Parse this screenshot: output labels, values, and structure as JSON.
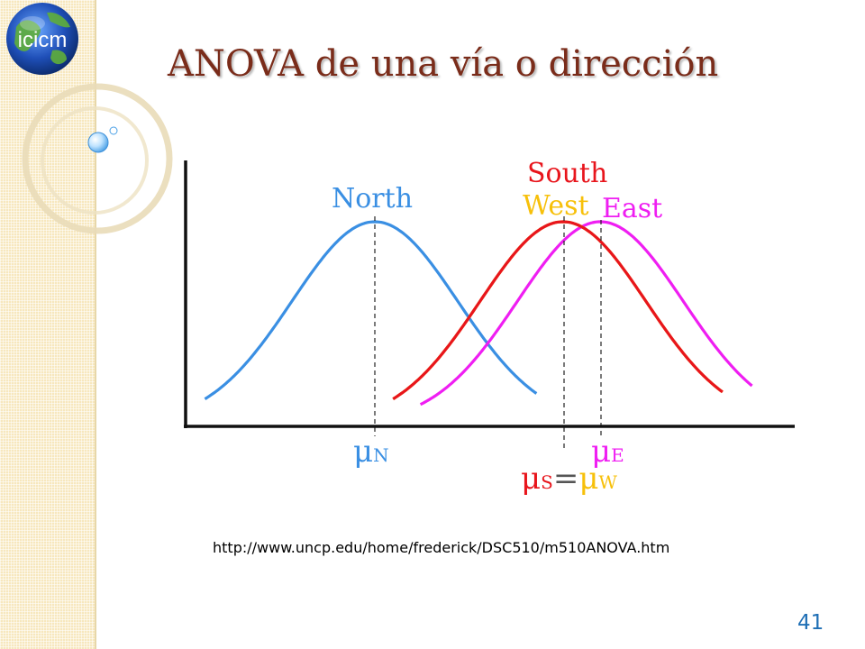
{
  "slide": {
    "logo_text": "icicm",
    "title": "ANOVA de una vía o dirección",
    "url": "http://www.uncp.edu/home/frederick/DSC510/m510ANOVA.htm",
    "page_number": "41"
  },
  "diagram": {
    "curves": [
      {
        "label": "North",
        "color": "#3a8fe3",
        "mean": 0,
        "sd": 1
      },
      {
        "label": "South",
        "color": "#e8151c",
        "mean": 2.27,
        "sd": 1
      },
      {
        "label": "West",
        "color": "#f7c00a",
        "mean": 2.27,
        "sd": 1
      },
      {
        "label": "East",
        "color": "#ef1ef2",
        "mean": 2.72,
        "sd": 1
      }
    ],
    "mean_labels": {
      "north": {
        "symbol": "μ",
        "sub": "N"
      },
      "east": {
        "symbol": "μ",
        "sub": "E"
      },
      "south_west": {
        "sym1": "μ",
        "sub1": "S",
        "eq": "=",
        "sym2": "μ",
        "sub2": "W"
      }
    }
  }
}
